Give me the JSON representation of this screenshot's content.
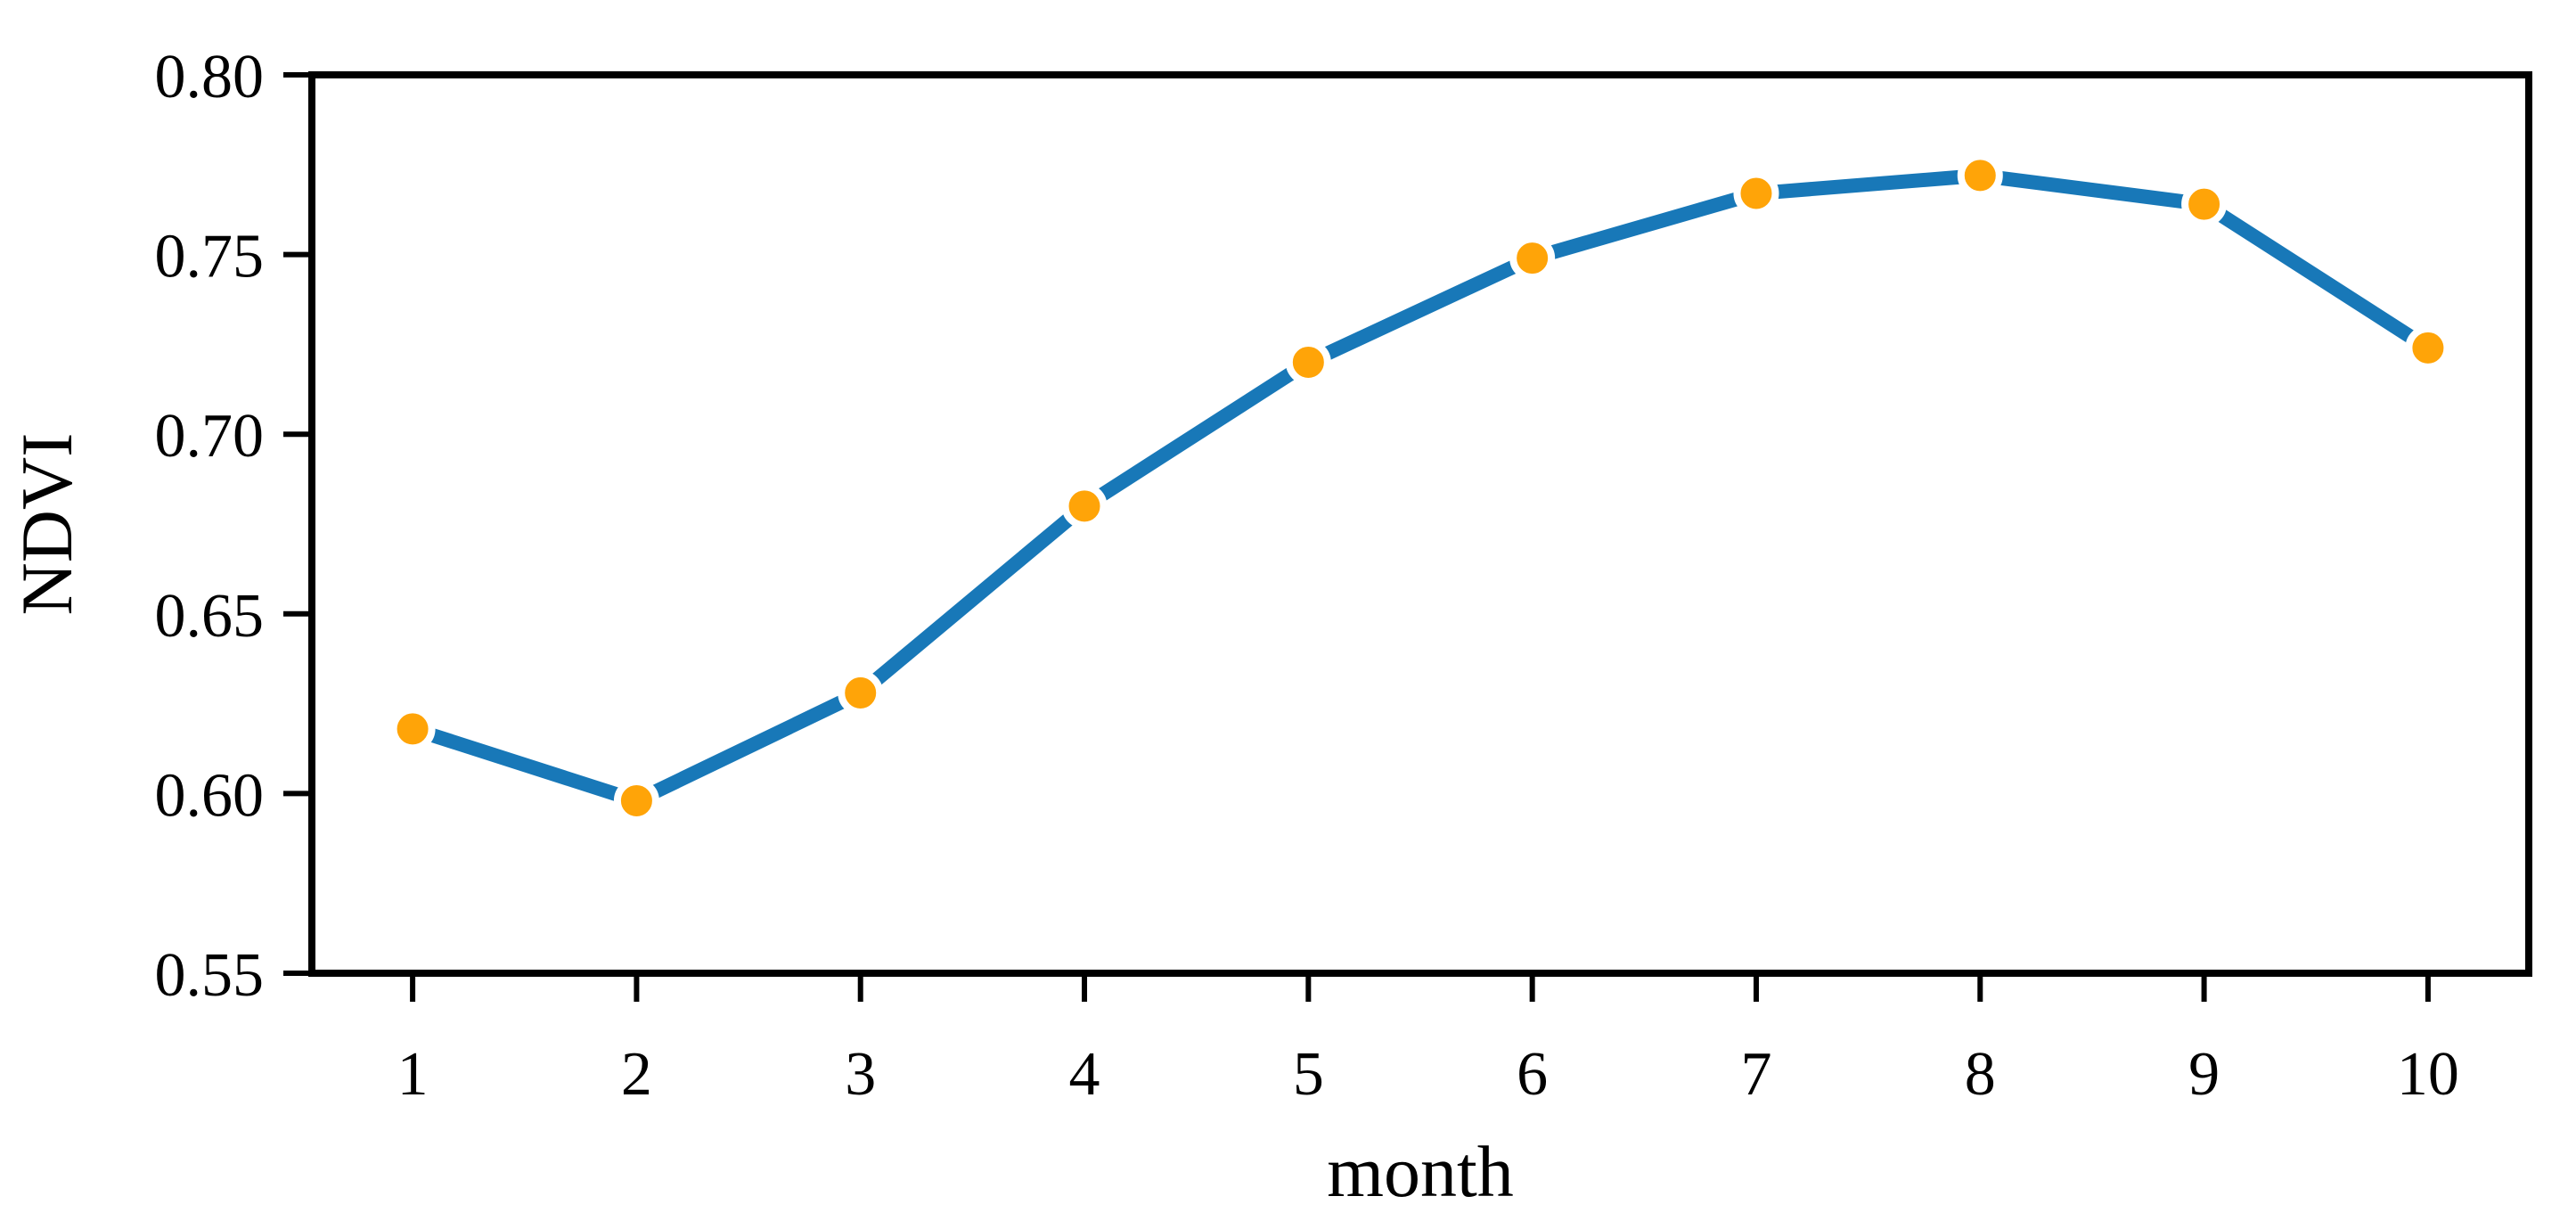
{
  "figure": {
    "background": "#ffffff",
    "axis_color": "#000000"
  },
  "chart_data": {
    "type": "line",
    "x": [
      1,
      2,
      3,
      4,
      5,
      6,
      7,
      8,
      9,
      10
    ],
    "series": [
      {
        "name": "NDVI",
        "values": [
          0.618,
          0.598,
          0.628,
          0.68,
          0.72,
          0.749,
          0.767,
          0.772,
          0.764,
          0.724
        ]
      }
    ],
    "title": "",
    "xlabel": "month",
    "ylabel": "NDVI",
    "xticks": [
      1,
      2,
      3,
      4,
      5,
      6,
      7,
      8,
      9,
      10
    ],
    "xtick_labels": [
      "1",
      "2",
      "3",
      "4",
      "5",
      "6",
      "7",
      "8",
      "9",
      "10"
    ],
    "yticks": [
      0.55,
      0.6,
      0.65,
      0.7,
      0.75,
      0.8
    ],
    "ytick_labels": [
      "0.55",
      "0.60",
      "0.65",
      "0.70",
      "0.75",
      "0.80"
    ],
    "xlim": [
      0.55,
      10.45
    ],
    "ylim": [
      0.55,
      0.8
    ],
    "grid": false,
    "legend_position": "none",
    "line_color": "#1878B8",
    "marker_color": "#FFA408",
    "marker_edge_color": "#ffffff",
    "marker_shape": "circle"
  }
}
